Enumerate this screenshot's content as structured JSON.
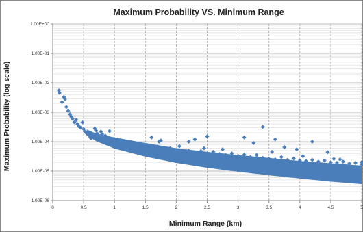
{
  "chart_data": {
    "type": "scatter",
    "title": "Maximum Probability VS. Minimum Range",
    "xlabel": "Minimum Range (km)",
    "ylabel": "Maximum Probability (log scale)",
    "xlim": [
      0,
      5
    ],
    "ylim": [
      1e-06,
      1
    ],
    "y_scale": "log",
    "grid": true,
    "legend": "none",
    "marker": "diamond",
    "colors": {
      "series": "#4a7ebb",
      "frame": "#8a8a8a",
      "grid_major": "#a6a6a6",
      "grid_minor": "#d0d0d0"
    },
    "x_ticks": [
      {
        "value": 0,
        "label": "0"
      },
      {
        "value": 0.5,
        "label": "0.5"
      },
      {
        "value": 1,
        "label": "1"
      },
      {
        "value": 1.5,
        "label": "1.5"
      },
      {
        "value": 2,
        "label": "2"
      },
      {
        "value": 2.5,
        "label": "2.5"
      },
      {
        "value": 3,
        "label": "3"
      },
      {
        "value": 3.5,
        "label": "3.5"
      },
      {
        "value": 4,
        "label": "4"
      },
      {
        "value": 4.5,
        "label": "4.5"
      },
      {
        "value": 5,
        "label": "5"
      }
    ],
    "y_ticks": [
      {
        "value": 1,
        "label": "1.00E+00"
      },
      {
        "value": 0.1,
        "label": "1.00E-01"
      },
      {
        "value": 0.01,
        "label": "1.00E-02"
      },
      {
        "value": 0.001,
        "label": "1.00E-03"
      },
      {
        "value": 0.0001,
        "label": "1.00E-04"
      },
      {
        "value": 1e-05,
        "label": "1.00E-05"
      },
      {
        "value": 1e-06,
        "label": "1.00E-06"
      }
    ],
    "series": [
      {
        "points": [
          [
            0.1,
            0.0055
          ],
          [
            0.11,
            0.0045
          ],
          [
            0.15,
            0.0022
          ],
          [
            0.18,
            0.0033
          ],
          [
            0.2,
            0.0028
          ],
          [
            0.22,
            0.0015
          ],
          [
            0.25,
            0.0011
          ],
          [
            0.28,
            0.00085
          ],
          [
            0.3,
            0.0007
          ],
          [
            0.32,
            0.0006
          ],
          [
            0.35,
            0.00046
          ],
          [
            0.38,
            0.00055
          ],
          [
            0.4,
            0.0004
          ],
          [
            0.42,
            0.00034
          ],
          [
            0.45,
            0.0003
          ],
          [
            0.48,
            0.00045
          ],
          [
            0.5,
            0.00027
          ],
          [
            0.52,
            0.00022
          ],
          [
            0.55,
            0.00019
          ],
          [
            0.58,
            0.00017
          ],
          [
            0.6,
            0.00015
          ],
          [
            0.62,
            0.00013
          ],
          [
            0.65,
            0.00016
          ],
          [
            0.68,
            0.00028
          ],
          [
            0.7,
            0.00024
          ],
          [
            0.72,
            0.00019
          ],
          [
            0.75,
            0.00014
          ],
          [
            0.78,
            0.00022
          ],
          [
            0.8,
            0.00018
          ],
          [
            0.82,
            0.00011
          ],
          [
            0.85,
            0.00016
          ],
          [
            0.88,
            9.5e-05
          ],
          [
            0.9,
            0.00013
          ],
          [
            0.92,
            0.00023
          ],
          [
            0.95,
            0.0001
          ],
          [
            1.0,
            9e-05
          ],
          [
            1.05,
            0.00012
          ],
          [
            1.1,
            8e-05
          ],
          [
            1.15,
            0.0001
          ],
          [
            1.2,
            7.5e-05
          ],
          [
            1.25,
            9.5e-05
          ],
          [
            1.3,
            7e-05
          ],
          [
            1.4,
            8.5e-05
          ],
          [
            1.45,
            6.5e-05
          ],
          [
            1.5,
            7.5e-05
          ],
          [
            1.6,
            6e-05
          ],
          [
            1.7,
            6.8e-05
          ],
          [
            1.72,
            0.0001
          ],
          [
            1.8,
            5.5e-05
          ],
          [
            1.9,
            6e-05
          ],
          [
            2.0,
            5e-05
          ],
          [
            2.05,
            7e-05
          ],
          [
            2.1,
            4.5e-05
          ],
          [
            2.2,
            5e-05
          ],
          [
            2.3,
            4.2e-05
          ],
          [
            2.4,
            4.8e-05
          ],
          [
            2.45,
            6e-05
          ],
          [
            2.5,
            4e-05
          ],
          [
            2.6,
            4.5e-05
          ],
          [
            2.7,
            3.8e-05
          ],
          [
            2.75,
            5.5e-05
          ],
          [
            2.8,
            3.5e-05
          ],
          [
            2.9,
            4e-05
          ],
          [
            3.0,
            3.3e-05
          ],
          [
            3.05,
            2.8e-05
          ],
          [
            3.1,
            3.6e-05
          ],
          [
            3.2,
            3e-05
          ],
          [
            3.3,
            3.5e-05
          ],
          [
            3.4,
            2.8e-05
          ],
          [
            3.5,
            2.6e-05
          ],
          [
            3.55,
            4.5e-05
          ],
          [
            3.6,
            2.5e-05
          ],
          [
            3.7,
            3e-05
          ],
          [
            3.8,
            2.4e-05
          ],
          [
            3.9,
            2.7e-05
          ],
          [
            4.0,
            2.3e-05
          ],
          [
            4.05,
            3.2e-05
          ],
          [
            4.1,
            2.2e-05
          ],
          [
            4.2,
            2.4e-05
          ],
          [
            4.3,
            2.1e-05
          ],
          [
            4.4,
            2.3e-05
          ],
          [
            4.5,
            2e-05
          ],
          [
            4.55,
            2.6e-05
          ],
          [
            4.6,
            1.9e-05
          ],
          [
            4.7,
            2.1e-05
          ],
          [
            4.8,
            1.8e-05
          ],
          [
            4.9,
            1.9e-05
          ],
          [
            5.0,
            1.7e-05
          ],
          [
            5.0,
            2e-05
          ],
          [
            3.4,
            0.00032
          ],
          [
            2.5,
            0.00015
          ],
          [
            3.1,
            0.00014
          ],
          [
            3.6,
            0.00012
          ],
          [
            4.2,
            0.0001
          ],
          [
            4.6,
            1.6e-05
          ],
          [
            4.45,
            4.4e-05
          ],
          [
            4.65,
            2.5e-05
          ],
          [
            3.95,
            5.5e-05
          ],
          [
            3.75,
            6.5e-05
          ],
          [
            3.25,
            9e-05
          ],
          [
            2.2,
            0.0001
          ],
          [
            2.3,
            0.00012
          ],
          [
            1.6,
            0.00014
          ],
          [
            1.75,
            0.00011
          ]
        ],
        "cloud": [
          [
            0.55,
            0.00017,
            0.00026
          ],
          [
            0.7,
            0.000105,
            0.00019
          ],
          [
            1.0,
            5.8e-05,
            0.00014
          ],
          [
            1.5,
            3.1e-05,
            9e-05
          ],
          [
            2.0,
            1.9e-05,
            6e-05
          ],
          [
            2.5,
            1.3e-05,
            4.5e-05
          ],
          [
            3.0,
            9.5e-06,
            3.5e-05
          ],
          [
            3.5,
            7.2e-06,
            2.8e-05
          ],
          [
            4.0,
            5.6e-06,
            2.2e-05
          ],
          [
            4.5,
            4.4e-06,
            1.85e-05
          ],
          [
            5.0,
            3.6e-06,
            1.55e-05
          ]
        ]
      }
    ]
  }
}
